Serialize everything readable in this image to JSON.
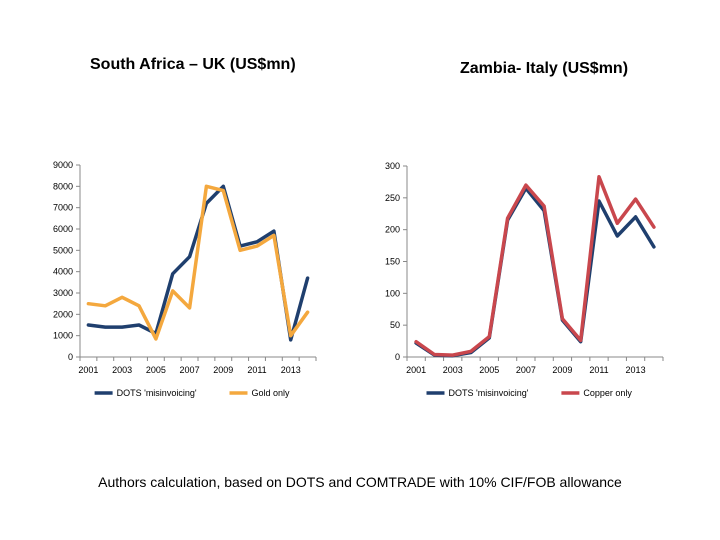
{
  "footnote": "Authors calculation, based on DOTS and COMTRADE with 10% CIF/FOB allowance",
  "chart_data": [
    {
      "type": "line",
      "title": "South Africa – UK (US$mn)",
      "xlabel": "",
      "ylabel": "",
      "x": [
        2001,
        2002,
        2003,
        2004,
        2005,
        2006,
        2007,
        2008,
        2009,
        2010,
        2011,
        2012,
        2013,
        2014
      ],
      "x_tick_labels": [
        "2001",
        "2003",
        "2005",
        "2007",
        "2009",
        "2011",
        "2013"
      ],
      "y_ticks": [
        0,
        1000,
        2000,
        3000,
        4000,
        5000,
        6000,
        7000,
        8000,
        9000
      ],
      "ylim": [
        0,
        9000
      ],
      "grid": false,
      "legend": "bottom",
      "series": [
        {
          "name": "DOTS 'misinvoicing'",
          "color": "#1f3f6e",
          "values": [
            1500,
            1400,
            1400,
            1500,
            1100,
            3900,
            4700,
            7200,
            8000,
            5200,
            5400,
            5900,
            800,
            3700
          ]
        },
        {
          "name": "Gold only",
          "color": "#f4a83e",
          "values": [
            2500,
            2400,
            2800,
            2400,
            850,
            3100,
            2300,
            8000,
            7800,
            5000,
            5200,
            5700,
            1000,
            2100
          ]
        }
      ]
    },
    {
      "type": "line",
      "title": "Zambia- Italy (US$mn)",
      "xlabel": "",
      "ylabel": "",
      "x": [
        2001,
        2002,
        2003,
        2004,
        2005,
        2006,
        2007,
        2008,
        2009,
        2010,
        2011,
        2012,
        2013,
        2014
      ],
      "x_tick_labels": [
        "2001",
        "2003",
        "2005",
        "2007",
        "2009",
        "2011",
        "2013"
      ],
      "y_ticks": [
        0,
        50,
        100,
        150,
        200,
        250,
        300
      ],
      "ylim": [
        0,
        300
      ],
      "grid": false,
      "legend": "bottom",
      "series": [
        {
          "name": "DOTS 'misinvoicing'",
          "color": "#1f3f6e",
          "values": [
            22,
            3,
            2,
            7,
            30,
            215,
            265,
            230,
            58,
            24,
            245,
            190,
            220,
            173
          ]
        },
        {
          "name": "Copper only",
          "color": "#c9474d",
          "values": [
            24,
            4,
            3,
            9,
            32,
            218,
            270,
            237,
            60,
            26,
            283,
            210,
            248,
            204
          ]
        }
      ]
    }
  ]
}
